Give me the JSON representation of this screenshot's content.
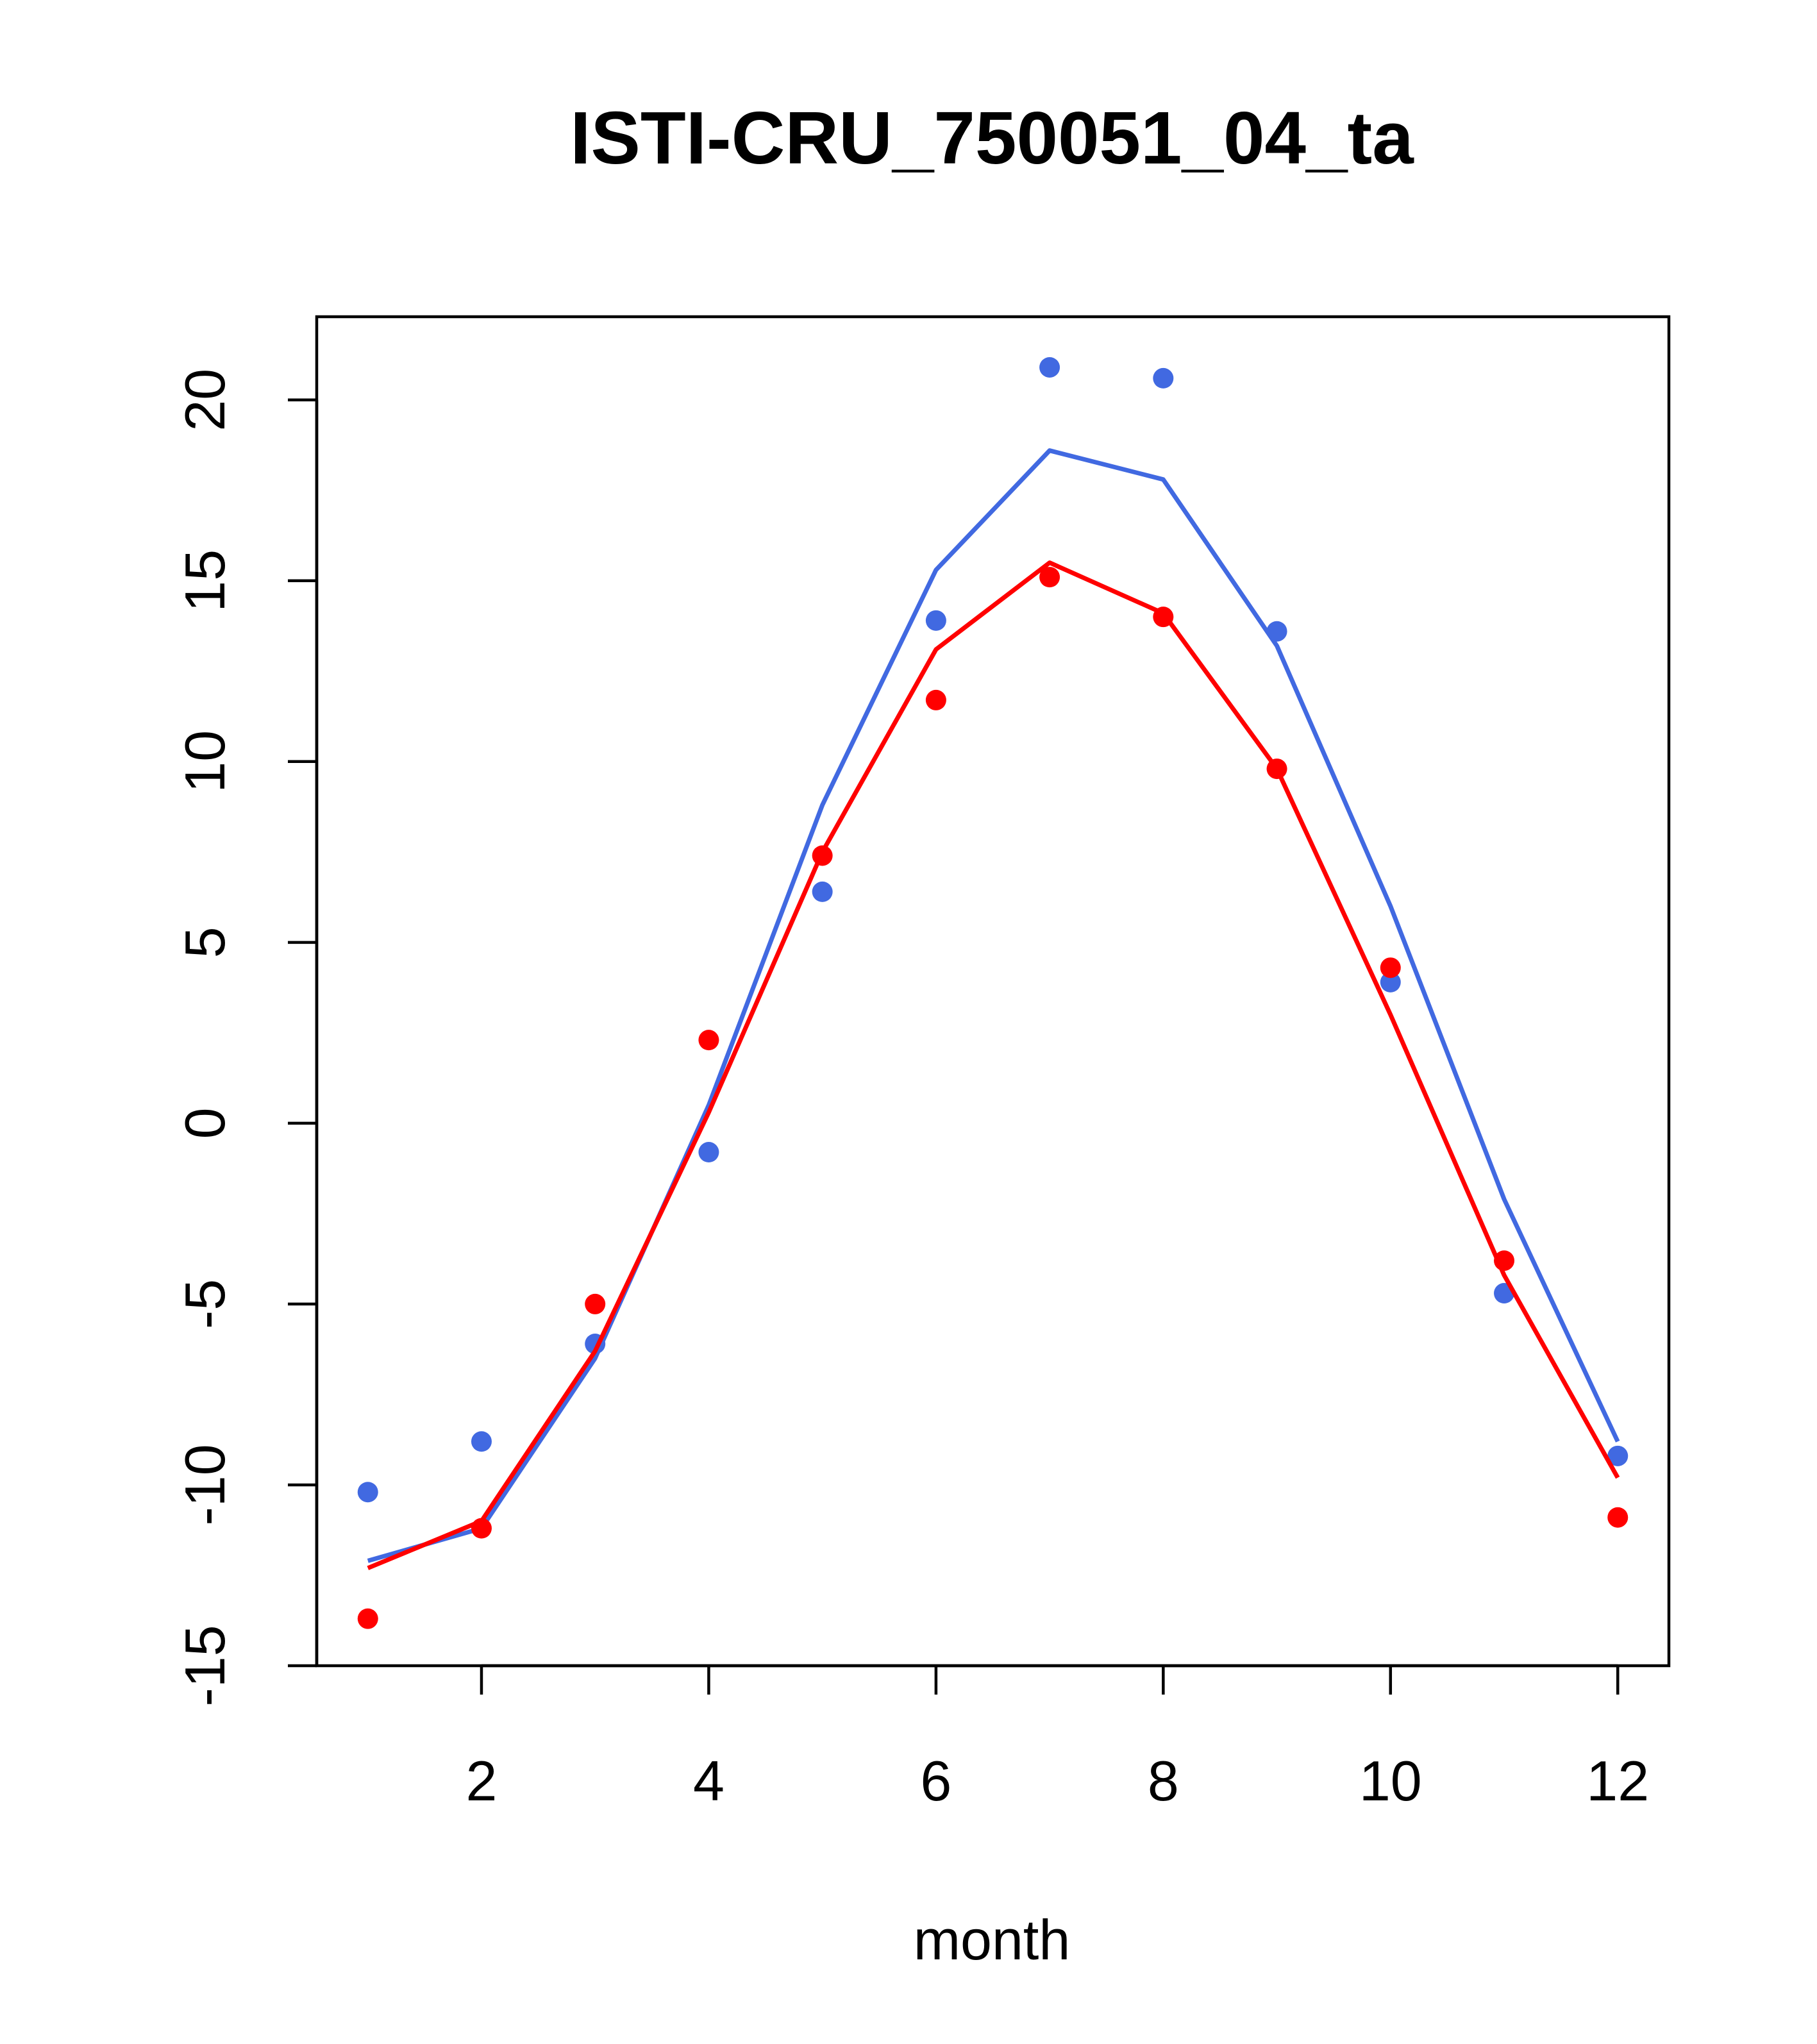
{
  "chart_data": {
    "type": "line",
    "title": "ISTI-CRU_750051_04_ta",
    "xlabel": "month",
    "ylabel": "",
    "x": [
      1,
      2,
      3,
      4,
      5,
      6,
      7,
      8,
      9,
      10,
      11,
      12
    ],
    "xlim": [
      0.55,
      12.45
    ],
    "ylim": [
      -15,
      22.3
    ],
    "x_ticks": [
      2,
      4,
      6,
      8,
      10,
      12
    ],
    "x_tick_labels": [
      "2",
      "4",
      "6",
      "8",
      "10",
      "12"
    ],
    "y_ticks": [
      -15,
      -10,
      -5,
      0,
      5,
      10,
      15,
      20
    ],
    "y_tick_labels": [
      "-15",
      "-10",
      "-5",
      "0",
      "5",
      "10",
      "15",
      "20"
    ],
    "grid": false,
    "series": [
      {
        "color": "#4169E1",
        "line": [
          -12.1,
          -11.2,
          -6.5,
          0.5,
          8.8,
          15.3,
          18.6,
          17.8,
          13.2,
          6.0,
          -2.1,
          -8.8
        ],
        "points": [
          -10.2,
          -8.8,
          -6.1,
          -0.8,
          6.4,
          13.9,
          20.9,
          20.6,
          13.6,
          3.9,
          -4.7,
          -9.2
        ]
      },
      {
        "color": "#FF0000",
        "line": [
          -12.3,
          -11.0,
          -6.3,
          0.3,
          7.5,
          13.1,
          15.5,
          14.1,
          9.8,
          3.0,
          -4.2,
          -9.8
        ],
        "points": [
          -13.7,
          -11.2,
          -5.0,
          2.3,
          7.4,
          11.7,
          15.1,
          14.0,
          9.8,
          4.3,
          -3.8,
          -10.9
        ]
      }
    ]
  }
}
